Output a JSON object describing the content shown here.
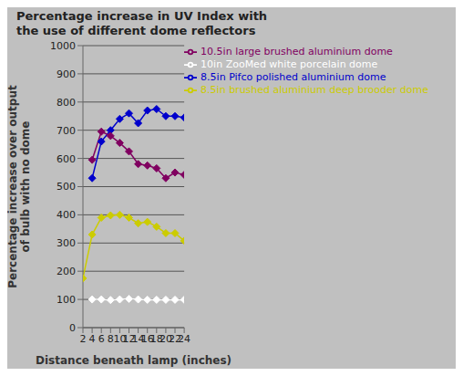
{
  "chart_data": {
    "type": "line",
    "title": "Percentage increase in UV Index with\nthe use of different dome reflectors",
    "x_label": "Distance beneath lamp (inches)",
    "y_label": "Percentage increase over output\nof bulb with no dome",
    "x": [
      2,
      4,
      6,
      8,
      10,
      12,
      14,
      16,
      18,
      20,
      22,
      24
    ],
    "series": [
      {
        "name": "8.5in Pifco polished aluminium dome",
        "color": "#0000CC",
        "marker": "diamond",
        "values": [
          null,
          530,
          660,
          700,
          740,
          760,
          725,
          770,
          775,
          750,
          750,
          745
        ]
      },
      {
        "name": "10.5in large brushed aluminium dome",
        "color": "#800060",
        "marker": "diamond",
        "values": [
          null,
          595,
          695,
          680,
          655,
          625,
          580,
          575,
          565,
          530,
          550,
          542
        ]
      },
      {
        "name": "8.5in brushed aluminium deep brooder dome",
        "color": "#CCCC00",
        "marker": "diamond",
        "values": [
          175,
          330,
          390,
          398,
          400,
          390,
          370,
          375,
          358,
          335,
          335,
          308
        ]
      },
      {
        "name": "10in ZooMed white porcelain dome",
        "color": "#FFFFFF",
        "marker": "diamond",
        "values": [
          null,
          100,
          100,
          98,
          100,
          102,
          100,
          99,
          99,
          99,
          99,
          99
        ]
      }
    ],
    "xlim": [
      2,
      24
    ],
    "xticks": [
      2,
      4,
      6,
      8,
      10,
      12,
      14,
      16,
      18,
      20,
      22,
      24
    ],
    "ylim": [
      0,
      1000
    ],
    "yticks": [
      0,
      100,
      200,
      300,
      400,
      500,
      600,
      700,
      800,
      900,
      1000
    ],
    "grid": true,
    "legend": "upper right"
  }
}
